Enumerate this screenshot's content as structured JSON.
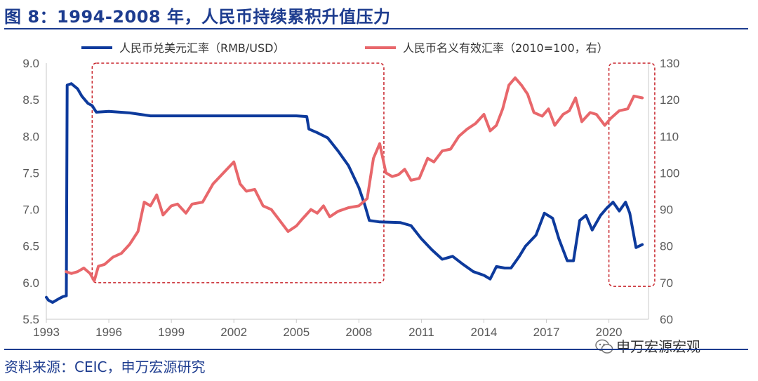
{
  "header": {
    "title": "图 8：1994-2008 年，人民币持续累积升值压力"
  },
  "footer": {
    "source": "资料来源：CEIC，申万宏源研究",
    "watermark": "申万宏源宏观"
  },
  "colors": {
    "usd_series": "#0d3a9c",
    "neer_series": "#e8676b",
    "annotation_box": "#c8242b",
    "text": "#1d3c8f"
  },
  "chart_data": {
    "type": "line",
    "x_ticks": [
      "1993",
      "1996",
      "1999",
      "2002",
      "2005",
      "2008",
      "2011",
      "2014",
      "2017",
      "2020"
    ],
    "xlim": [
      1993,
      2021.9
    ],
    "y_left": {
      "ticks": [
        "5.5",
        "6.0",
        "6.5",
        "7.0",
        "7.5",
        "8.0",
        "8.5",
        "9.0"
      ],
      "range": [
        5.5,
        9.0
      ]
    },
    "y_right": {
      "ticks": [
        "60",
        "70",
        "80",
        "90",
        "100",
        "110",
        "120",
        "130"
      ],
      "range": [
        60,
        130
      ]
    },
    "legend": [
      "人民币兑美元汇率（RMB/USD）",
      "人民币名义有效汇率（2010=100，右）"
    ],
    "series": [
      {
        "name": "人民币兑美元汇率（RMB/USD）",
        "axis": "left",
        "points": [
          [
            1993.0,
            5.8
          ],
          [
            1993.1,
            5.76
          ],
          [
            1993.3,
            5.73
          ],
          [
            1993.6,
            5.78
          ],
          [
            1993.8,
            5.81
          ],
          [
            1993.96,
            5.82
          ],
          [
            1994.0,
            8.7
          ],
          [
            1994.2,
            8.72
          ],
          [
            1994.5,
            8.65
          ],
          [
            1994.7,
            8.55
          ],
          [
            1995.0,
            8.45
          ],
          [
            1995.2,
            8.42
          ],
          [
            1995.4,
            8.33
          ],
          [
            1996.0,
            8.34
          ],
          [
            1997.0,
            8.32
          ],
          [
            1998.0,
            8.28
          ],
          [
            1999.0,
            8.28
          ],
          [
            2000.0,
            8.28
          ],
          [
            2001.0,
            8.28
          ],
          [
            2002.0,
            8.28
          ],
          [
            2003.0,
            8.28
          ],
          [
            2004.0,
            8.28
          ],
          [
            2005.0,
            8.28
          ],
          [
            2005.5,
            8.27
          ],
          [
            2005.6,
            8.1
          ],
          [
            2006.0,
            8.05
          ],
          [
            2006.5,
            7.98
          ],
          [
            2007.0,
            7.8
          ],
          [
            2007.5,
            7.6
          ],
          [
            2008.0,
            7.3
          ],
          [
            2008.3,
            7.05
          ],
          [
            2008.5,
            6.85
          ],
          [
            2009.0,
            6.83
          ],
          [
            2010.0,
            6.82
          ],
          [
            2010.5,
            6.78
          ],
          [
            2011.0,
            6.6
          ],
          [
            2011.5,
            6.45
          ],
          [
            2012.0,
            6.32
          ],
          [
            2012.5,
            6.36
          ],
          [
            2013.0,
            6.25
          ],
          [
            2013.5,
            6.15
          ],
          [
            2014.0,
            6.1
          ],
          [
            2014.3,
            6.05
          ],
          [
            2014.6,
            6.22
          ],
          [
            2015.0,
            6.2
          ],
          [
            2015.3,
            6.2
          ],
          [
            2015.7,
            6.36
          ],
          [
            2016.0,
            6.5
          ],
          [
            2016.5,
            6.65
          ],
          [
            2016.9,
            6.95
          ],
          [
            2017.3,
            6.88
          ],
          [
            2017.6,
            6.6
          ],
          [
            2018.0,
            6.3
          ],
          [
            2018.3,
            6.3
          ],
          [
            2018.6,
            6.85
          ],
          [
            2018.9,
            6.92
          ],
          [
            2019.2,
            6.72
          ],
          [
            2019.6,
            6.92
          ],
          [
            2019.9,
            7.02
          ],
          [
            2020.2,
            7.1
          ],
          [
            2020.5,
            6.98
          ],
          [
            2020.8,
            7.1
          ],
          [
            2021.0,
            6.95
          ],
          [
            2021.3,
            6.48
          ],
          [
            2021.6,
            6.52
          ]
        ]
      },
      {
        "name": "人民币名义有效汇率（2010=100，右）",
        "axis": "right",
        "points": [
          [
            1993.95,
            73
          ],
          [
            1994.2,
            72.5
          ],
          [
            1994.5,
            73
          ],
          [
            1994.8,
            74
          ],
          [
            1995.1,
            72.5
          ],
          [
            1995.3,
            70.5
          ],
          [
            1995.5,
            74.5
          ],
          [
            1995.8,
            75
          ],
          [
            1996.2,
            77
          ],
          [
            1996.6,
            78
          ],
          [
            1997.0,
            80.5
          ],
          [
            1997.4,
            84
          ],
          [
            1997.7,
            92
          ],
          [
            1998.0,
            91
          ],
          [
            1998.3,
            94
          ],
          [
            1998.6,
            88.5
          ],
          [
            1999.0,
            91
          ],
          [
            1999.3,
            91.5
          ],
          [
            1999.7,
            89
          ],
          [
            2000.0,
            91.5
          ],
          [
            2000.5,
            92
          ],
          [
            2001.0,
            97
          ],
          [
            2001.5,
            100
          ],
          [
            2002.0,
            103
          ],
          [
            2002.3,
            97
          ],
          [
            2002.6,
            95
          ],
          [
            2003.0,
            95.5
          ],
          [
            2003.4,
            91
          ],
          [
            2003.8,
            90
          ],
          [
            2004.2,
            87
          ],
          [
            2004.6,
            84
          ],
          [
            2005.0,
            85.5
          ],
          [
            2005.3,
            87.5
          ],
          [
            2005.7,
            90
          ],
          [
            2006.0,
            89
          ],
          [
            2006.3,
            91
          ],
          [
            2006.6,
            88
          ],
          [
            2007.0,
            89.5
          ],
          [
            2007.5,
            90.5
          ],
          [
            2008.0,
            91
          ],
          [
            2008.4,
            93
          ],
          [
            2008.7,
            104
          ],
          [
            2009.0,
            108
          ],
          [
            2009.3,
            100
          ],
          [
            2009.6,
            99
          ],
          [
            2009.9,
            99.5
          ],
          [
            2010.2,
            101
          ],
          [
            2010.5,
            98
          ],
          [
            2010.9,
            98.5
          ],
          [
            2011.3,
            104
          ],
          [
            2011.6,
            103
          ],
          [
            2012.0,
            106
          ],
          [
            2012.4,
            106.5
          ],
          [
            2012.8,
            110
          ],
          [
            2013.2,
            112
          ],
          [
            2013.6,
            113.5
          ],
          [
            2014.0,
            116
          ],
          [
            2014.3,
            111.5
          ],
          [
            2014.6,
            113
          ],
          [
            2014.9,
            117.5
          ],
          [
            2015.2,
            124
          ],
          [
            2015.5,
            126
          ],
          [
            2015.8,
            124
          ],
          [
            2016.1,
            121.5
          ],
          [
            2016.4,
            116.5
          ],
          [
            2016.8,
            115.5
          ],
          [
            2017.1,
            117.5
          ],
          [
            2017.4,
            113
          ],
          [
            2017.8,
            116
          ],
          [
            2018.1,
            117
          ],
          [
            2018.4,
            120.5
          ],
          [
            2018.7,
            114
          ],
          [
            2019.1,
            116.5
          ],
          [
            2019.4,
            116
          ],
          [
            2019.8,
            113
          ],
          [
            2020.1,
            115
          ],
          [
            2020.5,
            117
          ],
          [
            2020.9,
            117.5
          ],
          [
            2021.2,
            121
          ],
          [
            2021.6,
            120.5
          ]
        ]
      }
    ],
    "annotations": [
      {
        "type": "dashed-box",
        "x_range": [
          1995.2,
          2009.2
        ],
        "y_left_range": [
          6.0,
          9.0
        ]
      },
      {
        "type": "dashed-box",
        "x_range": [
          2020.0,
          2022.2
        ],
        "y_left_range": [
          5.95,
          9.0
        ]
      }
    ]
  }
}
